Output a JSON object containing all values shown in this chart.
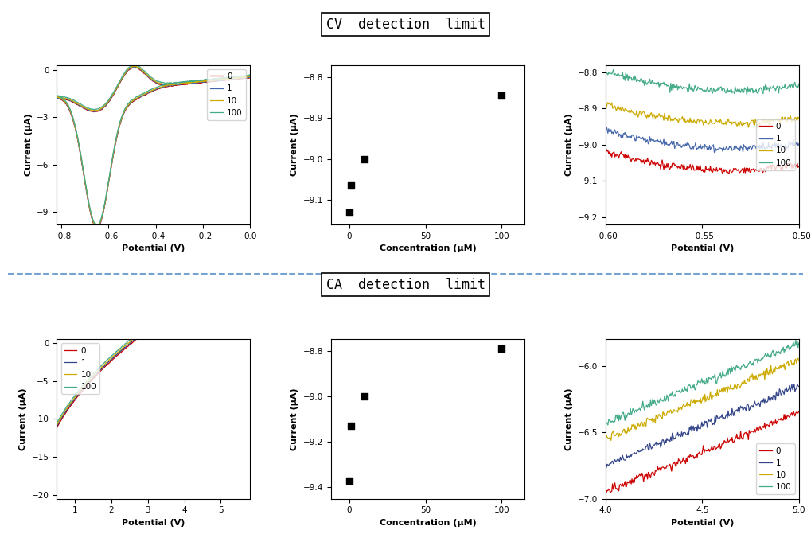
{
  "cv_title": "CV  detection  limit",
  "ca_title": "CA  detection  limit",
  "legend_labels": [
    "0",
    "1",
    "10",
    "100"
  ],
  "colors_cv": [
    "#cc0000",
    "#4466aa",
    "#ccaa00",
    "#44aa88"
  ],
  "colors_ca": [
    "#cc0000",
    "#334488",
    "#ccaa00",
    "#44aa88"
  ],
  "scatter_cv": {
    "concentration": [
      0,
      1,
      10,
      100
    ],
    "current": [
      -9.13,
      -9.065,
      -9.0,
      -8.845
    ]
  },
  "scatter_ca": {
    "concentration": [
      0,
      1,
      10,
      100
    ],
    "current": [
      -9.37,
      -9.13,
      -9.0,
      -8.79
    ]
  },
  "cv_full_xlim": [
    -0.82,
    0.0
  ],
  "cv_full_ylim": [
    -9.8,
    0.3
  ],
  "cv_scatter_ylim": [
    -9.16,
    -8.77
  ],
  "cv_scatter_yticks": [
    -9.1,
    -9.0,
    -8.9,
    -8.8
  ],
  "cv_zoom_xlim": [
    -0.6,
    -0.5
  ],
  "cv_zoom_ylim": [
    -9.22,
    -8.78
  ],
  "cv_zoom_yticks": [
    -9.2,
    -9.1,
    -9.0,
    -8.9,
    -8.8
  ],
  "ca_full_xlim": [
    0.5,
    5.8
  ],
  "ca_full_ylim": [
    -20.5,
    0.5
  ],
  "ca_scatter_ylim": [
    -9.45,
    -8.75
  ],
  "ca_scatter_yticks": [
    -9.4,
    -9.2,
    -9.0,
    -8.8
  ],
  "ca_zoom_xlim": [
    4.0,
    5.0
  ],
  "ca_zoom_ylim": [
    -7.0,
    -5.8
  ],
  "ca_zoom_yticks": [
    -7.0,
    -6.5,
    -6.0
  ],
  "background_color": "#ffffff"
}
